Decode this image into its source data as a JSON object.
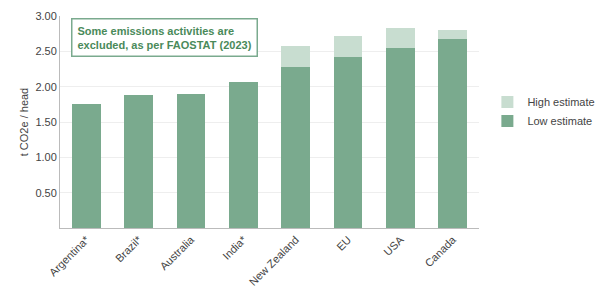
{
  "chart_data": {
    "type": "bar",
    "stacked": true,
    "categories": [
      "Argentina*",
      "Brazil*",
      "Australia",
      "India*",
      "New Zealand",
      "EU",
      "USA",
      "Canada"
    ],
    "series": [
      {
        "name": "Low estimate",
        "color": "#7aaa8e",
        "values": [
          1.76,
          1.88,
          1.9,
          2.07,
          2.28,
          2.42,
          2.55,
          2.67
        ]
      },
      {
        "name": "High estimate",
        "color": "#c8ddd0",
        "values": [
          0.0,
          0.0,
          0.0,
          0.0,
          0.3,
          0.3,
          0.28,
          0.13
        ]
      }
    ],
    "ylim": [
      0,
      3.0
    ],
    "yticks": [
      {
        "value": 0.5,
        "label": "0.50"
      },
      {
        "value": 1.0,
        "label": "1.00"
      },
      {
        "value": 1.5,
        "label": "1.50"
      },
      {
        "value": 2.0,
        "label": "2.00"
      },
      {
        "value": 2.5,
        "label": "2.50"
      },
      {
        "value": 3.0,
        "label": "3.00"
      }
    ],
    "ylabel": "t CO2e / head",
    "annotation": "Some emissions activities are\nexcluded, as per FAOSTAT (2023)",
    "grid": true,
    "legend": "right"
  }
}
